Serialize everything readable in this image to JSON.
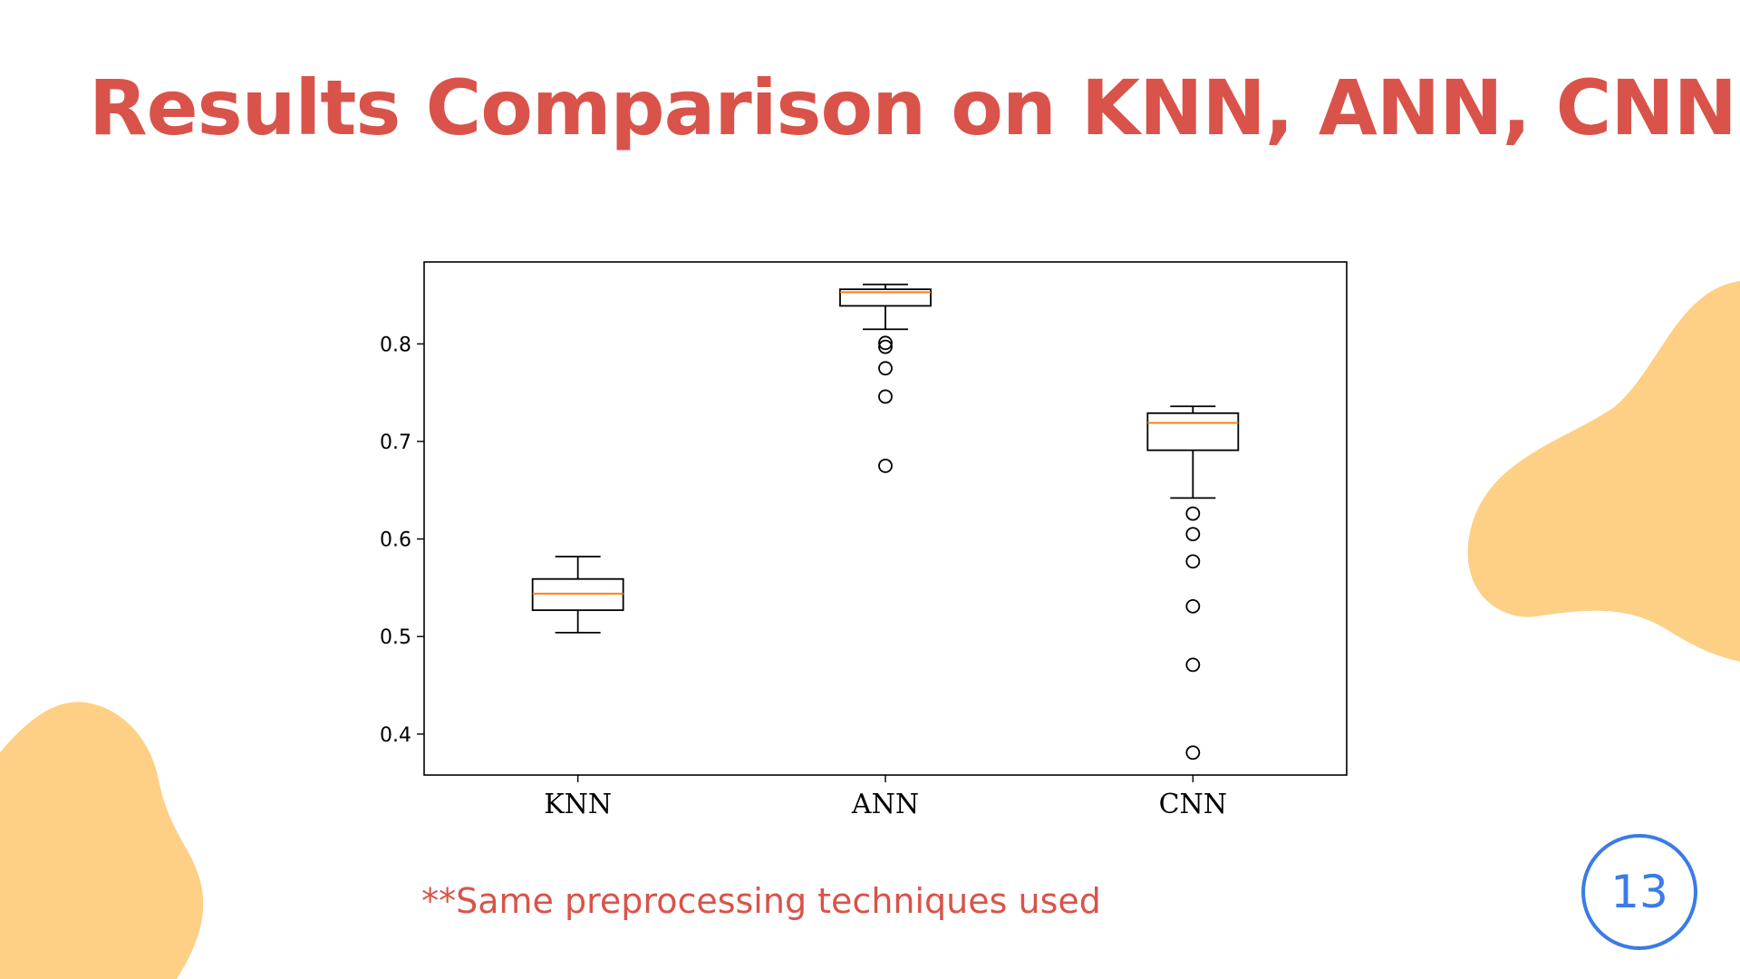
{
  "slide": {
    "title": "Results Comparison on KNN, ANN, CNN",
    "footnote": "**Same preprocessing techniques used",
    "page_number": "13"
  },
  "colors": {
    "title": "#D9534A",
    "footnote": "#D9534A",
    "blob": "#FDD085",
    "page_badge": "#3B7BE8",
    "median": "#FF7F0E",
    "box": "#000000"
  },
  "chart_data": {
    "type": "box",
    "categories": [
      "KNN",
      "ANN",
      "CNN"
    ],
    "boxes": [
      {
        "label": "KNN",
        "whisker_low": 0.504,
        "q1": 0.527,
        "median": 0.544,
        "q3": 0.559,
        "whisker_high": 0.582,
        "outliers": []
      },
      {
        "label": "ANN",
        "whisker_low": 0.815,
        "q1": 0.839,
        "median": 0.853,
        "q3": 0.856,
        "whisker_high": 0.861,
        "outliers": [
          0.801,
          0.797,
          0.775,
          0.746,
          0.675
        ]
      },
      {
        "label": "CNN",
        "whisker_low": 0.642,
        "q1": 0.691,
        "median": 0.719,
        "q3": 0.729,
        "whisker_high": 0.736,
        "outliers": [
          0.626,
          0.605,
          0.577,
          0.531,
          0.471,
          0.381
        ]
      }
    ],
    "yticks": [
      "0.4",
      "0.5",
      "0.6",
      "0.7",
      "0.8"
    ],
    "ylim": [
      0.358,
      0.884
    ],
    "title": "",
    "xlabel": "",
    "ylabel": "",
    "grid": false,
    "legend": "none"
  }
}
